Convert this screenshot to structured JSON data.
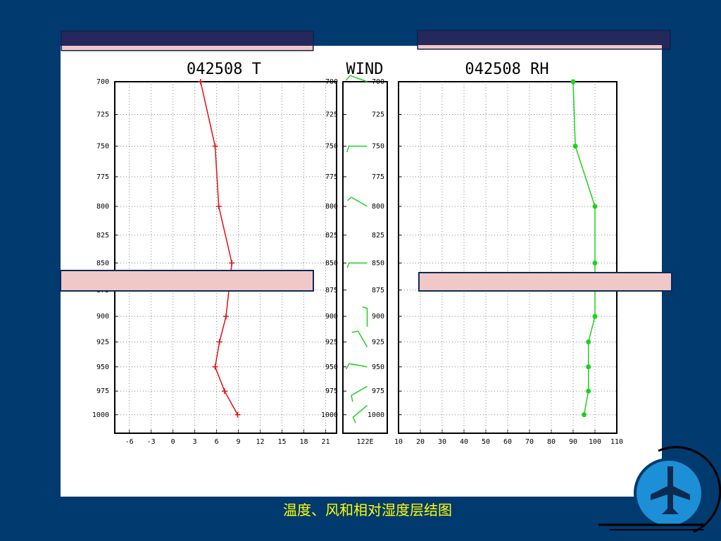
{
  "chart_data": [
    {
      "type": "line",
      "title": "042508 T",
      "marker": "plus",
      "color": "#e01010",
      "y": [
        700,
        750,
        800,
        850,
        900,
        925,
        950,
        975,
        1000
      ],
      "values": [
        3.8,
        5.8,
        6.3,
        8.1,
        7.3,
        6.4,
        5.8,
        7.1,
        8.9
      ],
      "xlim": [
        -8,
        22.5
      ],
      "xticks": [
        -6,
        -3,
        0,
        3,
        6,
        9,
        12,
        15,
        18,
        21
      ],
      "ylim": [
        1020,
        700
      ],
      "log_y": true,
      "yticks": [
        700,
        725,
        750,
        775,
        800,
        825,
        850,
        875,
        900,
        925,
        950,
        975,
        1000
      ],
      "grid": true
    },
    {
      "type": "barb",
      "title": "WIND",
      "xlabel": "122E",
      "color": "#20d020",
      "y": [
        700,
        750,
        800,
        850,
        910,
        930,
        950,
        970,
        990
      ],
      "directions": [
        290,
        270,
        300,
        270,
        360,
        330,
        280,
        240,
        230
      ],
      "speeds": [
        10,
        10,
        8,
        8,
        8,
        10,
        10,
        10,
        10
      ],
      "ylim": [
        1020,
        700
      ],
      "log_y": true,
      "yticks": [
        700,
        725,
        750,
        775,
        800,
        825,
        850,
        875,
        900,
        925,
        950,
        975,
        1000
      ]
    },
    {
      "type": "line",
      "title": "042508 RH",
      "marker": "dot",
      "color": "#20d020",
      "y": [
        700,
        750,
        800,
        850,
        900,
        925,
        950,
        975,
        1000
      ],
      "values": [
        90,
        91,
        100,
        100,
        100,
        97,
        97,
        97,
        95
      ],
      "xlim": [
        10,
        110
      ],
      "xticks": [
        10,
        20,
        30,
        40,
        50,
        60,
        70,
        80,
        90,
        100,
        110
      ],
      "ylim": [
        1020,
        700
      ],
      "log_y": true,
      "yticks": [
        700,
        725,
        750,
        775,
        800,
        825,
        850,
        875,
        900,
        925,
        950,
        975,
        1000
      ],
      "grid": true
    }
  ],
  "caption": "温度、风和相对湿度层结图"
}
